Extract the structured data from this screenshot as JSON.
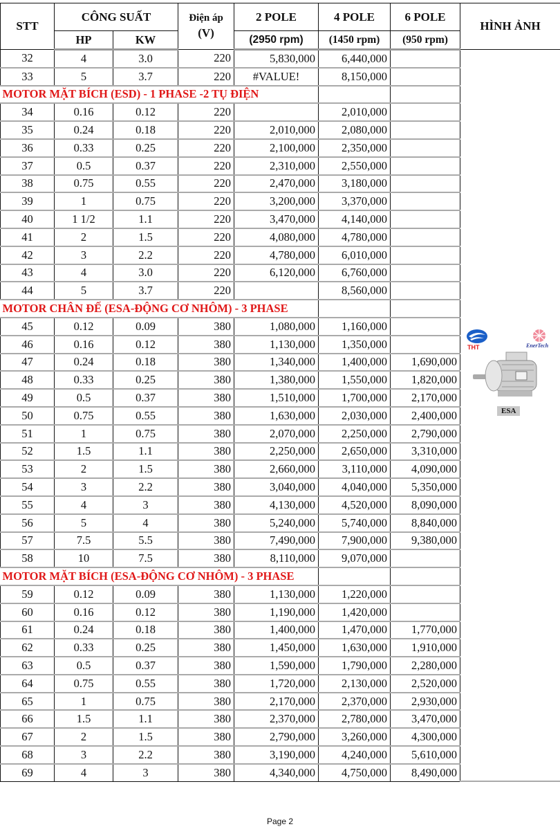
{
  "header": {
    "stt": "STT",
    "cong_suat": "CÔNG SUẤT",
    "hp": "HP",
    "kw": "KW",
    "dien_ap": "Điện áp",
    "dien_ap_unit": "(V)",
    "pole2": "2 POLE",
    "pole2_rpm": "(2950 rpm)",
    "pole4": "4 POLE",
    "pole4_rpm": "(1450 rpm)",
    "pole6": "6 POLE",
    "pole6_rpm": "(950 rpm)",
    "hinh_anh": "HÌNH ẢNH"
  },
  "image": {
    "logo_left": "THT",
    "logo_right": "EnerTech",
    "caption": "ESA",
    "accent_red": "#e01818",
    "logo_blue": "#1a5fc8"
  },
  "rows": [
    {
      "stt": "32",
      "hp": "4",
      "kw": "3.0",
      "v": "220",
      "p2": "5,830,000",
      "p4": "6,440,000",
      "p6": ""
    },
    {
      "stt": "33",
      "hp": "5",
      "kw": "3.7",
      "v": "220",
      "p2": "#VALUE!",
      "p4": "8,150,000",
      "p6": ""
    },
    {
      "section": "MOTOR MẶT BÍCH (ESD) - 1 PHASE -2 TỤ ĐIỆN"
    },
    {
      "stt": "34",
      "hp": "0.16",
      "kw": "0.12",
      "v": "220",
      "p2": "",
      "p4": "2,010,000",
      "p6": ""
    },
    {
      "stt": "35",
      "hp": "0.24",
      "kw": "0.18",
      "v": "220",
      "p2": "2,010,000",
      "p4": "2,080,000",
      "p6": ""
    },
    {
      "stt": "36",
      "hp": "0.33",
      "kw": "0.25",
      "v": "220",
      "p2": "2,100,000",
      "p4": "2,350,000",
      "p6": ""
    },
    {
      "stt": "37",
      "hp": "0.5",
      "kw": "0.37",
      "v": "220",
      "p2": "2,310,000",
      "p4": "2,550,000",
      "p6": ""
    },
    {
      "stt": "38",
      "hp": "0.75",
      "kw": "0.55",
      "v": "220",
      "p2": "2,470,000",
      "p4": "3,180,000",
      "p6": ""
    },
    {
      "stt": "39",
      "hp": "1",
      "kw": "0.75",
      "v": "220",
      "p2": "3,200,000",
      "p4": "3,370,000",
      "p6": ""
    },
    {
      "stt": "40",
      "hp": "1 1/2",
      "kw": "1.1",
      "v": "220",
      "p2": "3,470,000",
      "p4": "4,140,000",
      "p6": ""
    },
    {
      "stt": "41",
      "hp": "2",
      "kw": "1.5",
      "v": "220",
      "p2": "4,080,000",
      "p4": "4,780,000",
      "p6": ""
    },
    {
      "stt": "42",
      "hp": "3",
      "kw": "2.2",
      "v": "220",
      "p2": "4,780,000",
      "p4": "6,010,000",
      "p6": ""
    },
    {
      "stt": "43",
      "hp": "4",
      "kw": "3.0",
      "v": "220",
      "p2": "6,120,000",
      "p4": "6,760,000",
      "p6": ""
    },
    {
      "stt": "44",
      "hp": "5",
      "kw": "3.7",
      "v": "220",
      "p2": "",
      "p4": "8,560,000",
      "p6": ""
    },
    {
      "section": "MOTOR CHÂN ĐẾ  (ESA-ĐỘNG CƠ NHÔM) - 3 PHASE"
    },
    {
      "stt": "45",
      "hp": "0.12",
      "kw": "0.09",
      "v": "380",
      "p2": "1,080,000",
      "p4": "1,160,000",
      "p6": ""
    },
    {
      "stt": "46",
      "hp": "0.16",
      "kw": "0.12",
      "v": "380",
      "p2": "1,130,000",
      "p4": "1,350,000",
      "p6": ""
    },
    {
      "stt": "47",
      "hp": "0.24",
      "kw": "0.18",
      "v": "380",
      "p2": "1,340,000",
      "p4": "1,400,000",
      "p6": "1,690,000"
    },
    {
      "stt": "48",
      "hp": "0.33",
      "kw": "0.25",
      "v": "380",
      "p2": "1,380,000",
      "p4": "1,550,000",
      "p6": "1,820,000"
    },
    {
      "stt": "49",
      "hp": "0.5",
      "kw": "0.37",
      "v": "380",
      "p2": "1,510,000",
      "p4": "1,700,000",
      "p6": "2,170,000"
    },
    {
      "stt": "50",
      "hp": "0.75",
      "kw": "0.55",
      "v": "380",
      "p2": "1,630,000",
      "p4": "2,030,000",
      "p6": "2,400,000"
    },
    {
      "stt": "51",
      "hp": "1",
      "kw": "0.75",
      "v": "380",
      "p2": "2,070,000",
      "p4": "2,250,000",
      "p6": "2,790,000"
    },
    {
      "stt": "52",
      "hp": "1.5",
      "kw": "1.1",
      "v": "380",
      "p2": "2,250,000",
      "p4": "2,650,000",
      "p6": "3,310,000"
    },
    {
      "stt": "53",
      "hp": "2",
      "kw": "1.5",
      "v": "380",
      "p2": "2,660,000",
      "p4": "3,110,000",
      "p6": "4,090,000"
    },
    {
      "stt": "54",
      "hp": "3",
      "kw": "2.2",
      "v": "380",
      "p2": "3,040,000",
      "p4": "4,040,000",
      "p6": "5,350,000"
    },
    {
      "stt": "55",
      "hp": "4",
      "kw": "3",
      "v": "380",
      "p2": "4,130,000",
      "p4": "4,520,000",
      "p6": "8,090,000"
    },
    {
      "stt": "56",
      "hp": "5",
      "kw": "4",
      "v": "380",
      "p2": "5,240,000",
      "p4": "5,740,000",
      "p6": "8,840,000"
    },
    {
      "stt": "57",
      "hp": "7.5",
      "kw": "5.5",
      "v": "380",
      "p2": "7,490,000",
      "p4": "7,900,000",
      "p6": "9,380,000"
    },
    {
      "stt": "58",
      "hp": "10",
      "kw": "7.5",
      "v": "380",
      "p2": "8,110,000",
      "p4": "9,070,000",
      "p6": ""
    },
    {
      "section": "MOTOR MẶT BÍCH  (ESA-ĐỘNG CƠ NHÔM) - 3 PHASE"
    },
    {
      "stt": "59",
      "hp": "0.12",
      "kw": "0.09",
      "v": "380",
      "p2": "1,130,000",
      "p4": "1,220,000",
      "p6": ""
    },
    {
      "stt": "60",
      "hp": "0.16",
      "kw": "0.12",
      "v": "380",
      "p2": "1,190,000",
      "p4": "1,420,000",
      "p6": ""
    },
    {
      "stt": "61",
      "hp": "0.24",
      "kw": "0.18",
      "v": "380",
      "p2": "1,400,000",
      "p4": "1,470,000",
      "p6": "1,770,000"
    },
    {
      "stt": "62",
      "hp": "0.33",
      "kw": "0.25",
      "v": "380",
      "p2": "1,450,000",
      "p4": "1,630,000",
      "p6": "1,910,000"
    },
    {
      "stt": "63",
      "hp": "0.5",
      "kw": "0.37",
      "v": "380",
      "p2": "1,590,000",
      "p4": "1,790,000",
      "p6": "2,280,000"
    },
    {
      "stt": "64",
      "hp": "0.75",
      "kw": "0.55",
      "v": "380",
      "p2": "1,720,000",
      "p4": "2,130,000",
      "p6": "2,520,000"
    },
    {
      "stt": "65",
      "hp": "1",
      "kw": "0.75",
      "v": "380",
      "p2": "2,170,000",
      "p4": "2,370,000",
      "p6": "2,930,000"
    },
    {
      "stt": "66",
      "hp": "1.5",
      "kw": "1.1",
      "v": "380",
      "p2": "2,370,000",
      "p4": "2,780,000",
      "p6": "3,470,000"
    },
    {
      "stt": "67",
      "hp": "2",
      "kw": "1.5",
      "v": "380",
      "p2": "2,790,000",
      "p4": "3,260,000",
      "p6": "4,300,000"
    },
    {
      "stt": "68",
      "hp": "3",
      "kw": "2.2",
      "v": "380",
      "p2": "3,190,000",
      "p4": "4,240,000",
      "p6": "5,610,000"
    },
    {
      "stt": "69",
      "hp": "4",
      "kw": "3",
      "v": "380",
      "p2": "4,340,000",
      "p4": "4,750,000",
      "p6": "8,490,000"
    }
  ],
  "footer": {
    "page": "Page 2"
  }
}
